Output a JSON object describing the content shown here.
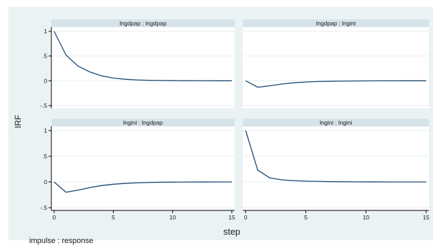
{
  "chart_data": {
    "type": "line",
    "ylabel": "IRF",
    "xlabel": "step",
    "note": "impulse : response",
    "xlim": [
      0,
      15
    ],
    "ylim": [
      -0.5,
      1
    ],
    "xticks": [
      0,
      5,
      10,
      15
    ],
    "yticks": [
      1,
      0.5,
      0,
      -0.5
    ],
    "ytick_labels": [
      "1",
      ".5",
      "0",
      "-.5"
    ],
    "grid": true,
    "line_color": "#1a476f",
    "panels": [
      {
        "title": "lngdpap : lngdpap",
        "x": [
          0,
          1,
          2,
          3,
          4,
          5,
          6,
          7,
          8,
          9,
          10,
          11,
          12,
          13,
          14,
          15
        ],
        "y": [
          1,
          0.52,
          0.3,
          0.18,
          0.1,
          0.055,
          0.03,
          0.017,
          0.01,
          0.006,
          0.004,
          0.002,
          0.001,
          0.001,
          0,
          0
        ]
      },
      {
        "title": "lngdpap : lngini",
        "x": [
          0,
          1,
          2,
          3,
          4,
          5,
          6,
          7,
          8,
          9,
          10,
          11,
          12,
          13,
          14,
          15
        ],
        "y": [
          0,
          -0.13,
          -0.1,
          -0.065,
          -0.04,
          -0.025,
          -0.015,
          -0.01,
          -0.006,
          -0.004,
          -0.002,
          -0.001,
          -0.001,
          0,
          0,
          0
        ]
      },
      {
        "title": "lngini : lngdpap",
        "x": [
          0,
          1,
          2,
          3,
          4,
          5,
          6,
          7,
          8,
          9,
          10,
          11,
          12,
          13,
          14,
          15
        ],
        "y": [
          0,
          -0.2,
          -0.16,
          -0.11,
          -0.07,
          -0.045,
          -0.028,
          -0.017,
          -0.01,
          -0.006,
          -0.004,
          -0.002,
          -0.001,
          -0.001,
          0,
          0
        ]
      },
      {
        "title": "lngini : lngini",
        "x": [
          0,
          1,
          2,
          3,
          4,
          5,
          6,
          7,
          8,
          9,
          10,
          11,
          12,
          13,
          14,
          15
        ],
        "y": [
          1,
          0.23,
          0.08,
          0.04,
          0.025,
          0.015,
          0.01,
          0.006,
          0.004,
          0.002,
          0.001,
          0.001,
          0,
          0,
          0,
          0
        ]
      }
    ]
  }
}
